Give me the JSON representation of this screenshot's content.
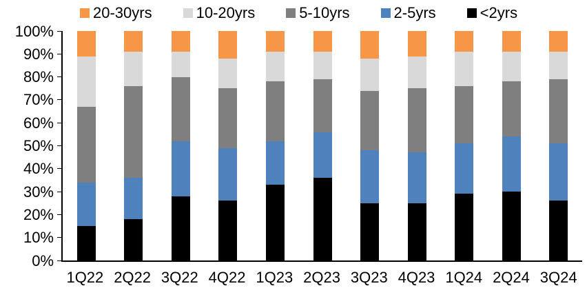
{
  "chart_data": {
    "type": "bar",
    "stacked": true,
    "percent_stacked": true,
    "title": "",
    "xlabel": "",
    "ylabel": "",
    "grid": false,
    "legend_position": "top",
    "categories": [
      "1Q22",
      "2Q22",
      "3Q22",
      "4Q22",
      "1Q23",
      "2Q23",
      "3Q23",
      "4Q23",
      "1Q24",
      "2Q24",
      "3Q24"
    ],
    "series": [
      {
        "name": "20-30yrs",
        "key": "20-30yrs",
        "color": "#F79646",
        "values": [
          11,
          9,
          9,
          12,
          9,
          9,
          12,
          11,
          9,
          9,
          9
        ]
      },
      {
        "name": "10-20yrs",
        "key": "10-20yrs",
        "color": "#D9D9D9",
        "values": [
          22,
          15,
          11,
          13,
          13,
          12,
          14,
          14,
          15,
          13,
          12
        ]
      },
      {
        "name": "5-10yrs",
        "key": "5-10yrs",
        "color": "#7F7F7F",
        "values": [
          33,
          40,
          28,
          26,
          26,
          23,
          26,
          28,
          25,
          24,
          28
        ]
      },
      {
        "name": "2-5yrs",
        "key": "2-5yrs",
        "color": "#4F81BD",
        "values": [
          19,
          18,
          24,
          23,
          19,
          20,
          23,
          22,
          22,
          24,
          25
        ]
      },
      {
        "name": "<2yrs",
        "key": "under-2yrs",
        "color": "#000000",
        "values": [
          15,
          18,
          28,
          26,
          33,
          36,
          25,
          25,
          29,
          30,
          26
        ]
      }
    ],
    "y_axis": {
      "min": 0,
      "max": 100,
      "step": 10,
      "tick_labels": [
        "0%",
        "10%",
        "20%",
        "30%",
        "40%",
        "50%",
        "60%",
        "70%",
        "80%",
        "90%",
        "100%"
      ]
    }
  }
}
